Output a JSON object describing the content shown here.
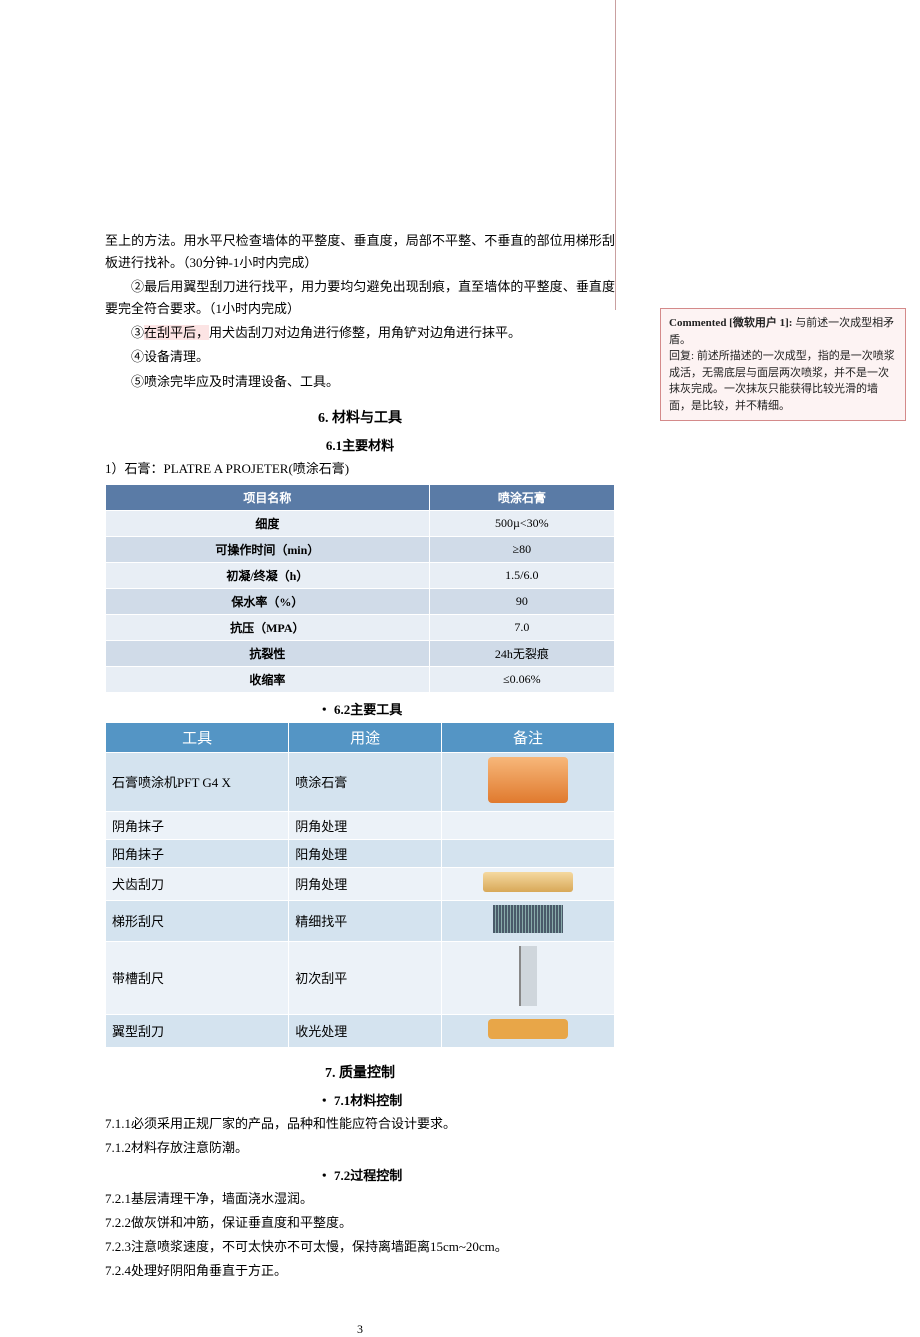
{
  "body": {
    "p1": "至上的方法。用水平尺检查墙体的平整度、垂直度，局部不平整、不垂直的部位用梯形刮板进行找补。（30分钟-1小时内完成）",
    "p2": "②最后用翼型刮刀进行找平，用力要均匀避免出现刮痕，直至墙体的平整度、垂直度要完全符合要求。（1小时内完成）",
    "p3_pre": "③",
    "p3_hl": "在刮平后，",
    "p3_post": "用犬齿刮刀对边角进行修整，用角铲对边角进行抹平。",
    "p4": "④设备清理。",
    "p5": "⑤喷涂完毕应及时清理设备、工具。"
  },
  "section6": {
    "title": "6. 材料与工具",
    "sub1": "6.1主要材料",
    "lead": "1）石膏：PLATRE A PROJETER(喷涂石膏)",
    "table1": {
      "headers": [
        "项目名称",
        "喷涂石膏"
      ],
      "rows": [
        [
          "细度",
          "500µ<30%"
        ],
        [
          "可操作时间（min）",
          "≥80"
        ],
        [
          "初凝/终凝（h）",
          "1.5/6.0"
        ],
        [
          "保水率（%）",
          "90"
        ],
        [
          "抗压（MPA）",
          "7.0"
        ],
        [
          "抗裂性",
          "24h无裂痕"
        ],
        [
          "收缩率",
          "≤0.06%"
        ]
      ]
    },
    "sub2": "・ 6.2主要工具",
    "table2": {
      "headers": [
        "工具",
        "用途",
        "备注"
      ],
      "rows": [
        {
          "tool": "石膏喷涂机PFT G4 X",
          "use": "喷涂石膏",
          "img": "machine"
        },
        {
          "tool": "阴角抹子",
          "use": "阴角处理",
          "img": ""
        },
        {
          "tool": "阳角抹子",
          "use": "阳角处理",
          "img": ""
        },
        {
          "tool": "犬齿刮刀",
          "use": "阴角处理",
          "img": "blade-wide"
        },
        {
          "tool": "梯形刮尺",
          "use": "精细找平",
          "img": "brush"
        },
        {
          "tool": "带槽刮尺",
          "use": "初次刮平",
          "img": "ruler"
        },
        {
          "tool": "翼型刮刀",
          "use": "收光处理",
          "img": "squeegee"
        }
      ]
    }
  },
  "section7": {
    "title": "7. 质量控制",
    "sub1": "・ 7.1材料控制",
    "s1": [
      "7.1.1必须采用正规厂家的产品，品种和性能应符合设计要求。",
      "7.1.2材料存放注意防潮。"
    ],
    "sub2": "・ 7.2过程控制",
    "s2": [
      "7.2.1基层清理干净，墙面浇水湿润。",
      "7.2.2做灰饼和冲筋，保证垂直度和平整度。",
      "7.2.3注意喷浆速度，不可太快亦不可太慢，保持离墙距离15cm~20cm。",
      "7.2.4处理好阴阳角垂直于方正。"
    ]
  },
  "pageNumber": "3",
  "comment": {
    "label": "Commented [微软用户 1]: ",
    "title": "与前述一次成型相矛盾。",
    "reply_label": "回复: ",
    "reply": "前述所描述的一次成型，指的是一次喷浆成活，无需底层与面层两次喷浆，并不是一次抹灰完成。一次抹灰只能获得比较光滑的墙面，是比较，并不精细。"
  }
}
